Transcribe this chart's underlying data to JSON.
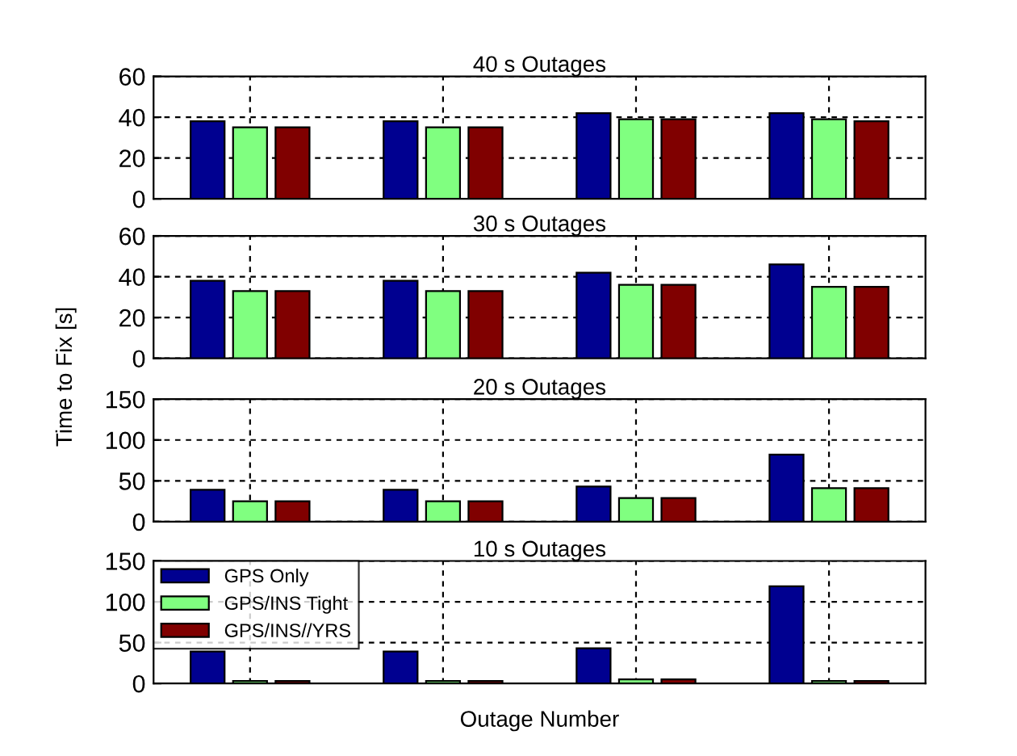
{
  "chart_data": [
    {
      "type": "bar",
      "title": "40 s Outages",
      "categories": [
        null,
        null,
        null,
        null
      ],
      "ylim": [
        0,
        60
      ],
      "yticks": [
        0,
        20,
        40,
        60
      ],
      "grid": true,
      "tick_labels": "y",
      "legend": false,
      "series": [
        {
          "color": "#000090",
          "values": [
            38,
            38,
            42,
            42
          ]
        },
        {
          "color": "#80ff80",
          "values": [
            35,
            35,
            39,
            39
          ]
        },
        {
          "color": "#800000",
          "values": [
            35,
            35,
            39,
            38
          ]
        }
      ]
    },
    {
      "type": "bar",
      "title": "30 s Outages",
      "ylabel": "Time to Fix [s]",
      "categories": [
        null,
        null,
        null,
        null
      ],
      "ylim": [
        0,
        60
      ],
      "yticks": [
        0,
        20,
        40,
        60
      ],
      "grid": true,
      "tick_labels": "y",
      "legend": false,
      "series": [
        {
          "color": "#000090",
          "values": [
            38,
            38,
            42,
            46
          ]
        },
        {
          "color": "#80ff80",
          "values": [
            33,
            33,
            36,
            35
          ]
        },
        {
          "color": "#800000",
          "values": [
            33,
            33,
            36,
            35
          ]
        }
      ]
    },
    {
      "type": "bar",
      "title": "20 s Outages",
      "categories": [
        null,
        null,
        null,
        null
      ],
      "ylim": [
        0,
        150
      ],
      "yticks": [
        0,
        50,
        100,
        150
      ],
      "grid": true,
      "tick_labels": "y",
      "legend": false,
      "series": [
        {
          "color": "#000090",
          "values": [
            39,
            39,
            43,
            82
          ]
        },
        {
          "color": "#80ff80",
          "values": [
            25,
            25,
            29,
            41
          ]
        },
        {
          "color": "#800000",
          "values": [
            25,
            25,
            29,
            41
          ]
        }
      ]
    },
    {
      "type": "bar",
      "title": "10 s Outages",
      "xlabel": "Outage Number",
      "categories": [
        null,
        null,
        null,
        null
      ],
      "ylim": [
        0,
        150
      ],
      "yticks": [
        0,
        50,
        100,
        150
      ],
      "grid": true,
      "tick_labels": "y",
      "legend": "top left",
      "series": [
        {
          "name": "GPS Only",
          "color": "#000090",
          "values": [
            39,
            39,
            43,
            119
          ]
        },
        {
          "name": "GPS/INS Tight",
          "color": "#80ff80",
          "values": [
            3,
            3,
            5,
            3
          ]
        },
        {
          "name": "GPS/INS//YRS",
          "color": "#800000",
          "values": [
            3,
            3,
            5,
            3
          ]
        }
      ]
    }
  ]
}
